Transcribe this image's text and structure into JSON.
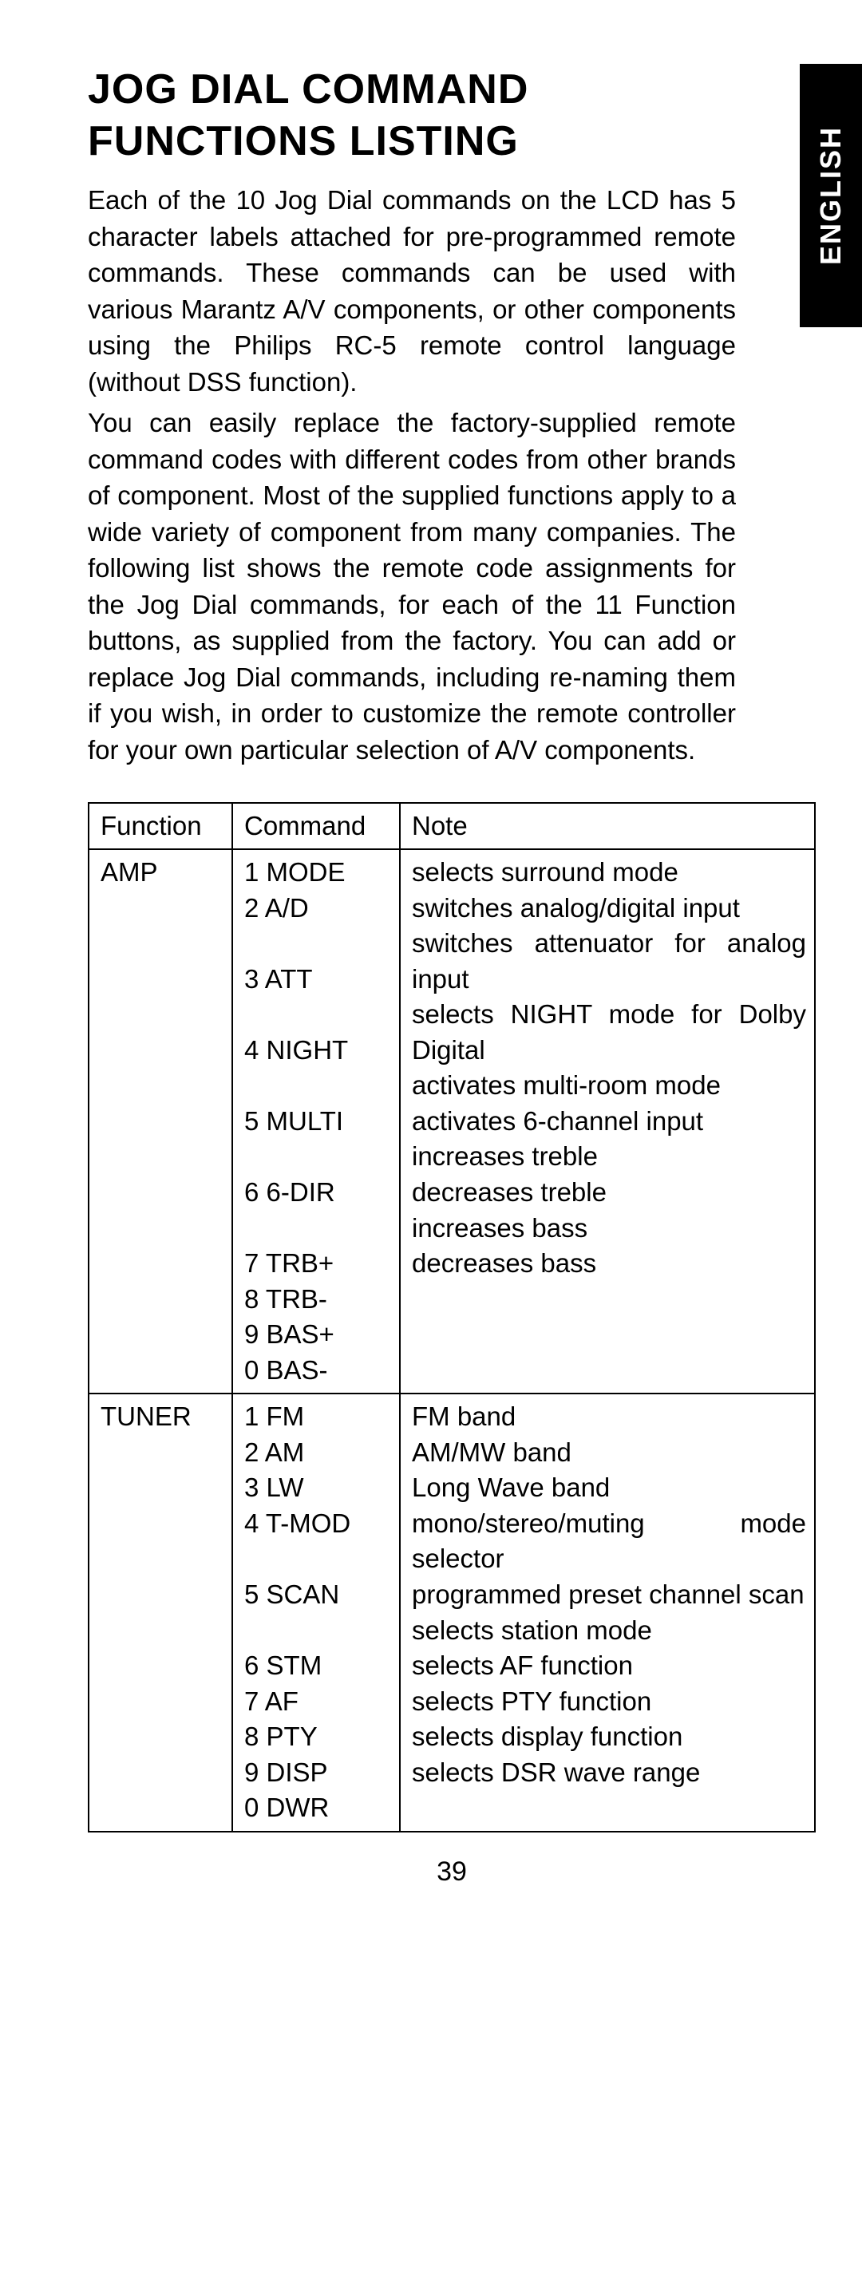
{
  "language_tab": "ENGLISH",
  "title": "JOG DIAL COMMAND FUNCTIONS LISTING",
  "para1": "Each of the 10 Jog Dial commands on the LCD has 5 character labels attached for pre-programmed remote commands. These commands can be used with various Marantz A/V components, or other components using the Philips RC-5 remote control language (without DSS function).",
  "para2": "You can easily replace the factory-supplied remote command codes with different codes from other brands of component. Most of the supplied functions apply to a wide variety of component from many companies. The following list shows the remote code assignments for the Jog Dial commands, for each of the 11 Function buttons, as supplied from the factory. You can add or replace Jog Dial commands, including re-naming them if you wish, in order to customize the remote controller for your own particular selection of A/V components.",
  "headers": {
    "function": "Function",
    "command": "Command",
    "note": "Note"
  },
  "sections": [
    {
      "function": "AMP",
      "rows": [
        {
          "cmd": "1 MODE",
          "note": "selects surround mode"
        },
        {
          "cmd": "2 A/D",
          "note": "switches analog/digital input"
        },
        {
          "cmd": "3 ATT",
          "note": "switches attenuator for analog input"
        },
        {
          "cmd": "4 NIGHT",
          "note": "selects NIGHT mode for Dolby Digital"
        },
        {
          "cmd": "5 MULTI",
          "note": "activates multi-room mode"
        },
        {
          "cmd": "6 6-DIR",
          "note": "activates 6-channel input"
        },
        {
          "cmd": "7 TRB+",
          "note": "increases treble"
        },
        {
          "cmd": "8 TRB-",
          "note": "decreases treble"
        },
        {
          "cmd": "9 BAS+",
          "note": "increases bass"
        },
        {
          "cmd": "0 BAS-",
          "note": "decreases bass"
        }
      ]
    },
    {
      "function": "TUNER",
      "rows": [
        {
          "cmd": "1 FM",
          "note": "FM band"
        },
        {
          "cmd": "2 AM",
          "note": "AM/MW band"
        },
        {
          "cmd": "3 LW",
          "note": "Long Wave band"
        },
        {
          "cmd": "4 T-MOD",
          "note": "mono/stereo/muting mode selector"
        },
        {
          "cmd": "5 SCAN",
          "note": "programmed preset channel scan"
        },
        {
          "cmd": "6 STM",
          "note": "selects station mode"
        },
        {
          "cmd": "7 AF",
          "note": "selects AF function"
        },
        {
          "cmd": "8 PTY",
          "note": "selects PTY function"
        },
        {
          "cmd": "9 DISP",
          "note": "selects display function"
        },
        {
          "cmd": "0 DWR",
          "note": "selects DSR wave range"
        }
      ]
    }
  ],
  "page_number": "39"
}
